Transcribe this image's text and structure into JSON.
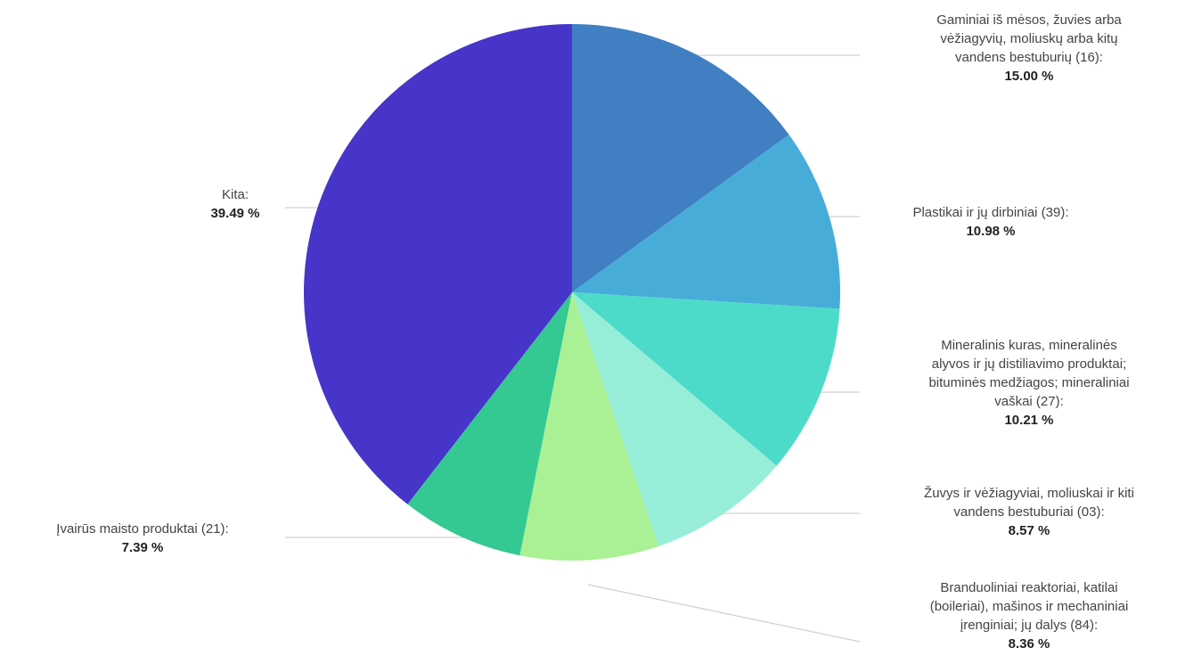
{
  "chart_data": {
    "type": "pie",
    "slices": [
      {
        "label_lines": [
          "Gaminiai iš mėsos, žuvies arba",
          "vėžiagyvių, moliuskų arba kitų",
          "vandens bestuburių (16):"
        ],
        "value": 15.0,
        "value_text": "15.00 %",
        "color": "#4080c2"
      },
      {
        "label_lines": [
          "Plastikai ir jų dirbiniai (39):"
        ],
        "value": 10.98,
        "value_text": "10.98 %",
        "color": "#48acd9"
      },
      {
        "label_lines": [
          "Mineralinis kuras, mineralinės",
          "alyvos ir jų distiliavimo produktai;",
          "bituminės medžiagos; mineraliniai",
          "vaškai (27):"
        ],
        "value": 10.21,
        "value_text": "10.21 %",
        "color": "#4ddbc9"
      },
      {
        "label_lines": [
          "Žuvys ir vėžiagyviai, moliuskai ir kiti",
          "vandens bestuburiai (03):"
        ],
        "value": 8.57,
        "value_text": "8.57 %",
        "color": "#96eed8"
      },
      {
        "label_lines": [
          "Branduoliniai reaktoriai, katilai",
          "(boileriai), mašinos ir mechaniniai",
          "įrenginiai; jų dalys (84):"
        ],
        "value": 8.36,
        "value_text": "8.36 %",
        "color": "#aaf095"
      },
      {
        "label_lines": [
          "Įvairūs maisto produktai (21):"
        ],
        "value": 7.39,
        "value_text": "7.39 %",
        "color": "#34c892"
      },
      {
        "label_lines": [
          "Kita:"
        ],
        "value": 39.49,
        "value_text": "39.49 %",
        "color": "#4635c8"
      }
    ],
    "start_angle_deg": 0,
    "direction": "clockwise"
  }
}
